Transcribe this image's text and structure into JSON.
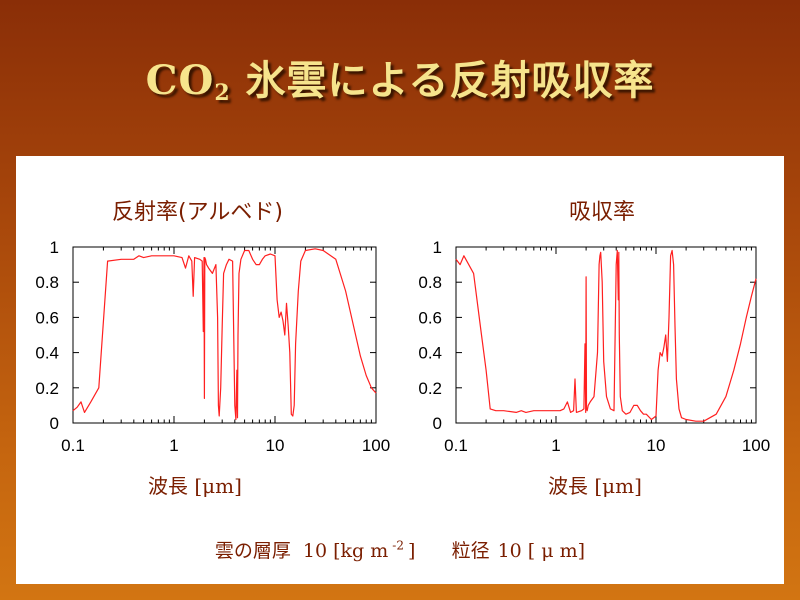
{
  "slide": {
    "title_prefix": "CO",
    "title_sub": "2",
    "title_rest": " 氷雲による反射吸収率"
  },
  "footer": {
    "label1": "雲の層厚",
    "value1": "10 [kg m",
    "exp1": "-2",
    "close1": "]",
    "label2": "粒径",
    "value2": "10 [ μ m]"
  },
  "colors": {
    "line": "#ff2020",
    "text": "#7a1e00",
    "title": "#f6e48c"
  },
  "chart_data": [
    {
      "type": "line",
      "title": "反射率(アルベド)",
      "xlabel": "波長 [μm]",
      "xscale": "log",
      "xlim": [
        0.1,
        100
      ],
      "ylim": [
        0,
        1
      ],
      "xticks": [
        "0.1",
        "1",
        "10",
        "100"
      ],
      "yticks": [
        "0",
        "0.2",
        "0.4",
        "0.6",
        "0.8",
        "1"
      ],
      "grid": false,
      "series": [
        {
          "x": [
            0.1,
            0.11,
            0.12,
            0.13,
            0.15,
            0.18,
            0.22,
            0.3,
            0.4,
            0.45,
            0.5,
            0.6,
            0.8,
            1.0,
            1.2,
            1.3,
            1.4,
            1.5,
            1.55,
            1.6,
            1.8,
            1.9,
            1.95,
            1.98,
            2.0,
            2.02,
            2.05,
            2.1,
            2.2,
            2.4,
            2.6,
            2.7,
            2.75,
            2.8,
            2.9,
            3.0,
            3.1,
            3.3,
            3.5,
            3.8,
            4.0,
            4.1,
            4.2,
            4.25,
            4.3,
            4.4,
            4.6,
            5.0,
            5.5,
            6.0,
            6.5,
            7.0,
            7.5,
            8.0,
            9.0,
            10.0,
            10.5,
            11.0,
            11.5,
            12.0,
            12.5,
            13.0,
            13.5,
            14.0,
            14.5,
            15.0,
            15.5,
            16.0,
            17.0,
            18.0,
            20.0,
            25.0,
            30.0,
            40.0,
            50.0,
            60.0,
            70.0,
            80.0,
            90.0,
            100.0
          ],
          "y": [
            0.07,
            0.09,
            0.12,
            0.06,
            0.12,
            0.2,
            0.92,
            0.93,
            0.93,
            0.95,
            0.94,
            0.95,
            0.95,
            0.95,
            0.94,
            0.88,
            0.95,
            0.92,
            0.72,
            0.94,
            0.93,
            0.92,
            0.52,
            0.94,
            0.14,
            0.94,
            0.93,
            0.9,
            0.88,
            0.85,
            0.9,
            0.6,
            0.1,
            0.04,
            0.2,
            0.55,
            0.85,
            0.9,
            0.93,
            0.92,
            0.1,
            0.02,
            0.3,
            0.03,
            0.5,
            0.85,
            0.93,
            0.98,
            0.98,
            0.93,
            0.9,
            0.9,
            0.93,
            0.95,
            0.96,
            0.95,
            0.7,
            0.6,
            0.63,
            0.58,
            0.5,
            0.68,
            0.55,
            0.4,
            0.05,
            0.04,
            0.1,
            0.45,
            0.75,
            0.92,
            0.98,
            0.99,
            0.98,
            0.93,
            0.75,
            0.55,
            0.38,
            0.27,
            0.2,
            0.17
          ]
        }
      ]
    },
    {
      "type": "line",
      "title": "吸収率",
      "xlabel": "波長 [μm]",
      "xscale": "log",
      "xlim": [
        0.1,
        100
      ],
      "ylim": [
        0,
        1
      ],
      "xticks": [
        "0.1",
        "1",
        "10",
        "100"
      ],
      "yticks": [
        "0",
        "0.2",
        "0.4",
        "0.6",
        "0.8",
        "1"
      ],
      "grid": false,
      "series": [
        {
          "x": [
            0.1,
            0.11,
            0.12,
            0.15,
            0.18,
            0.2,
            0.22,
            0.25,
            0.3,
            0.4,
            0.45,
            0.5,
            0.6,
            0.8,
            1.0,
            1.1,
            1.2,
            1.3,
            1.4,
            1.5,
            1.55,
            1.6,
            1.8,
            1.9,
            1.95,
            1.98,
            2.0,
            2.02,
            2.05,
            2.1,
            2.2,
            2.4,
            2.6,
            2.7,
            2.75,
            2.8,
            2.9,
            3.0,
            3.2,
            3.5,
            3.8,
            4.0,
            4.1,
            4.2,
            4.25,
            4.3,
            4.4,
            4.6,
            5.0,
            5.5,
            6.0,
            6.5,
            7.0,
            7.5,
            8.0,
            9.0,
            10.0,
            10.5,
            11.0,
            11.5,
            12.0,
            12.5,
            13.0,
            13.5,
            14.0,
            14.5,
            15.0,
            15.5,
            16.0,
            17.0,
            18.0,
            20.0,
            25.0,
            30.0,
            40.0,
            50.0,
            60.0,
            70.0,
            80.0,
            90.0,
            100.0
          ],
          "y": [
            0.93,
            0.9,
            0.95,
            0.85,
            0.5,
            0.3,
            0.08,
            0.07,
            0.07,
            0.06,
            0.07,
            0.06,
            0.07,
            0.07,
            0.07,
            0.07,
            0.08,
            0.12,
            0.06,
            0.07,
            0.25,
            0.06,
            0.07,
            0.08,
            0.45,
            0.06,
            0.83,
            0.08,
            0.07,
            0.1,
            0.12,
            0.15,
            0.4,
            0.9,
            0.95,
            0.97,
            0.8,
            0.35,
            0.15,
            0.08,
            0.07,
            0.9,
            0.98,
            0.7,
            0.97,
            0.5,
            0.15,
            0.07,
            0.05,
            0.06,
            0.1,
            0.1,
            0.07,
            0.05,
            0.05,
            0.02,
            0.04,
            0.3,
            0.4,
            0.38,
            0.43,
            0.5,
            0.35,
            0.6,
            0.95,
            0.98,
            0.9,
            0.55,
            0.25,
            0.08,
            0.03,
            0.02,
            0.01,
            0.01,
            0.05,
            0.15,
            0.3,
            0.45,
            0.6,
            0.72,
            0.82
          ]
        }
      ]
    }
  ]
}
